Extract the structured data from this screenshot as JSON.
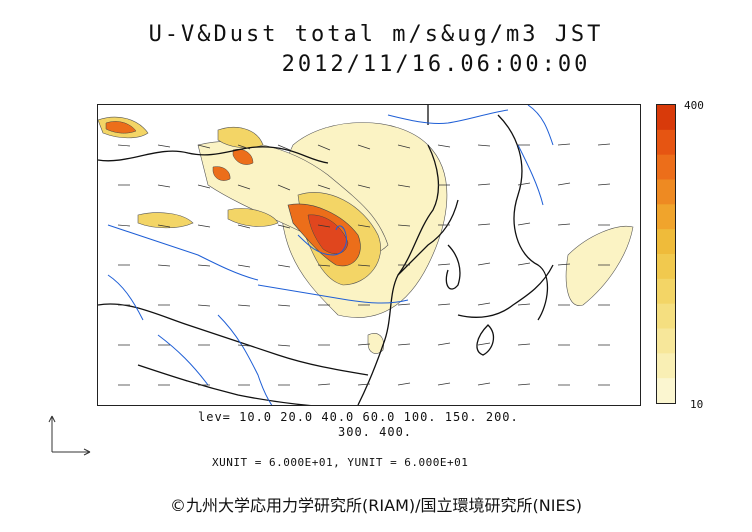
{
  "header": {
    "title_line1": "U-V&Dust total m/s&ug/m3 JST",
    "title_line2": "2012/11/16.06:00:00"
  },
  "colorbar": {
    "max_label": "400",
    "min_label": "10",
    "colors": [
      "#fbf6d0",
      "#f9efb4",
      "#f7e79a",
      "#f5df80",
      "#f3d566",
      "#f1c94e",
      "#efbb3a",
      "#f0a42c",
      "#ee8a22",
      "#ec6e1a",
      "#e65512",
      "#d83a0a"
    ]
  },
  "legend": {
    "levels_line1": "lev= 10.0 20.0 40.0 60.0 100. 150. 200.",
    "levels_line2": "300. 400.",
    "units": "XUNIT = 6.000E+01, YUNIT = 6.000E+01"
  },
  "footer": {
    "copyright": "©九州大学応用力学研究所(RIAM)/国立環境研究所(NIES)"
  },
  "map_colors": {
    "coast": "#111111",
    "river": "#1f5fd6",
    "dust_low": "#fbf3c4",
    "dust_mid": "#f3d566",
    "dust_high": "#ec6e1a",
    "dust_peak": "#e0461e"
  }
}
